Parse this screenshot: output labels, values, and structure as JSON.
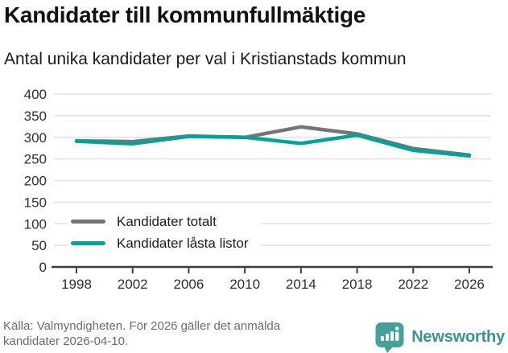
{
  "header": {
    "title": "Kandidater till kommunfullmäktige",
    "subtitle": "Antal unika kandidater per val i Kristianstads kommun"
  },
  "chart_data": {
    "type": "line",
    "categories": [
      "1998",
      "2002",
      "2006",
      "2010",
      "2014",
      "2018",
      "2022",
      "2026"
    ],
    "series": [
      {
        "name": "Kandidater totalt",
        "color": "#757575",
        "values": [
          292,
          290,
          303,
          300,
          324,
          308,
          274,
          259
        ]
      },
      {
        "name": "Kandidater låsta listor",
        "color": "#00a29a",
        "values": [
          291,
          285,
          302,
          300,
          286,
          305,
          270,
          257
        ]
      }
    ],
    "title": "Kandidater till kommunfullmäktige",
    "subtitle": "Antal unika kandidater per val i Kristianstads kommun",
    "xlabel": "",
    "ylabel": "",
    "ylim": [
      0,
      400
    ],
    "ytick_step": 50,
    "grid": true,
    "legend_position": "inside-bottom-left",
    "colors": {
      "gridline": "#e1e1e1",
      "axis": "#3b3b3b",
      "tick_label": "#2f2f2f"
    }
  },
  "footer": {
    "source_text": "Källa: Valmyndigheten. För 2026 gäller det anmälda kandidater 2026-04-10.",
    "brand_name": "Newsworthy",
    "brand_color": "#38958e",
    "brand_icon_color": "#45a19a"
  }
}
